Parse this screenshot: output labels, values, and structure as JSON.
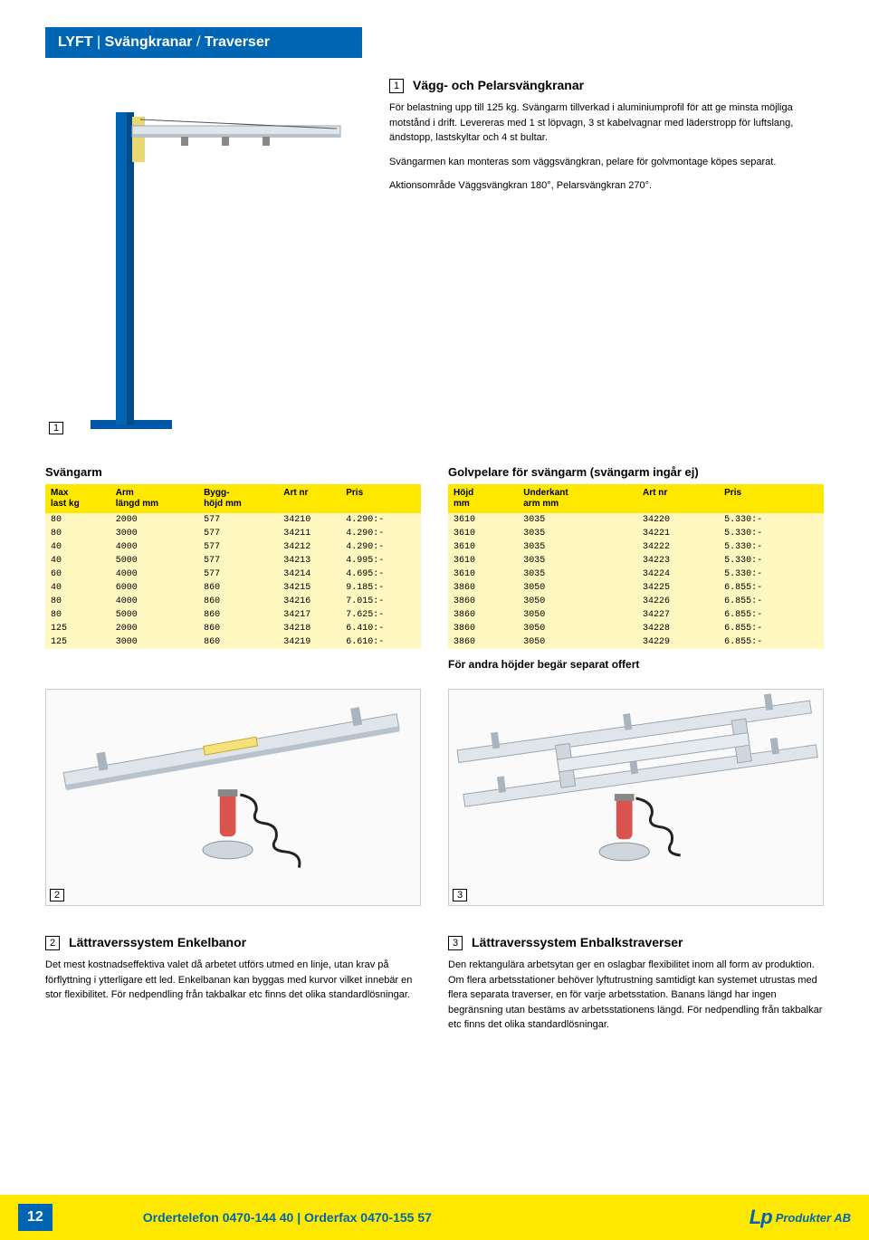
{
  "header": {
    "category": "LYFT",
    "sub1": "Svängkranar",
    "sub2": "Traverser"
  },
  "section1": {
    "num": "1",
    "title": "Vägg- och Pelarsvängkranar",
    "p1": "För belastning upp till 125 kg. Svängarm tillverkad i aluminiumprofil för att ge minsta möjliga motstånd i drift. Levereras med 1 st löpvagn, 3 st kabelvagnar med läderstropp för luftslang, ändstopp, lastskyltar och 4 st bultar.",
    "p2": "Svängarmen kan monteras som väggsvängkran, pelare för golvmontage köpes separat.",
    "p3": "Aktionsområde Väggsvängkran 180°, Pelarsvängkran 270°."
  },
  "imageMarkers": {
    "img1": "1",
    "img2": "2",
    "img3": "3"
  },
  "table1": {
    "caption": "Svängarm",
    "cols": [
      "Max\nlast kg",
      "Arm\nlängd mm",
      "Bygg-\nhöjd mm",
      "Art nr",
      "Pris"
    ],
    "rows": [
      [
        "80",
        "2000",
        "577",
        "34210",
        "4.290:-"
      ],
      [
        "80",
        "3000",
        "577",
        "34211",
        "4.290:-"
      ],
      [
        "40",
        "4000",
        "577",
        "34212",
        "4.290:-"
      ],
      [
        "40",
        "5000",
        "577",
        "34213",
        "4.995:-"
      ],
      [
        "60",
        "4000",
        "577",
        "34214",
        "4.695:-"
      ],
      [
        "40",
        "6000",
        "860",
        "34215",
        "9.185:-"
      ],
      [
        "80",
        "4000",
        "860",
        "34216",
        "7.015:-"
      ],
      [
        "80",
        "5000",
        "860",
        "34217",
        "7.625:-"
      ],
      [
        "125",
        "2000",
        "860",
        "34218",
        "6.410:-"
      ],
      [
        "125",
        "3000",
        "860",
        "34219",
        "6.610:-"
      ]
    ]
  },
  "table2": {
    "caption": "Golvpelare för svängarm (svängarm ingår ej)",
    "cols": [
      "Höjd\nmm",
      "Underkant\narm mm",
      "Art nr",
      "Pris"
    ],
    "rows": [
      [
        "3610",
        "3035",
        "34220",
        "5.330:-"
      ],
      [
        "3610",
        "3035",
        "34221",
        "5.330:-"
      ],
      [
        "3610",
        "3035",
        "34222",
        "5.330:-"
      ],
      [
        "3610",
        "3035",
        "34223",
        "5.330:-"
      ],
      [
        "3610",
        "3035",
        "34224",
        "5.330:-"
      ],
      [
        "3860",
        "3050",
        "34225",
        "6.855:-"
      ],
      [
        "3860",
        "3050",
        "34226",
        "6.855:-"
      ],
      [
        "3860",
        "3050",
        "34227",
        "6.855:-"
      ],
      [
        "3860",
        "3050",
        "34228",
        "6.855:-"
      ],
      [
        "3860",
        "3050",
        "34229",
        "6.855:-"
      ]
    ],
    "note": "För andra höjder begär separat offert"
  },
  "section2": {
    "num": "2",
    "title": "Lättraverssystem Enkelbanor",
    "body": "Det mest kostnadseffektiva valet då arbetet utförs utmed en linje, utan krav på förflyttning i ytterligare ett led. Enkelbanan kan byggas med kurvor vilket innebär en stor flexibilitet. För nedpendling från takbalkar etc finns det olika standardlösningar."
  },
  "section3": {
    "num": "3",
    "title": "Lättraverssystem Enbalkstraverser",
    "body": "Den rektangulära arbetsytan ger en oslagbar flexibilitet inom all form av produktion. Om flera arbetsstationer behöver lyftutrustning samtidigt kan systemet utrustas med flera separata traverser, en för varje arbetsstation. Banans längd har ingen begränsning utan bestäms av arbetsstationens längd. För nedpendling från takbalkar etc finns det olika standardlösningar."
  },
  "footer": {
    "page": "12",
    "tel_label": "Ordertelefon",
    "tel": "0470-144 40",
    "fax_label": "Orderfax",
    "fax": "0470-155 57",
    "company": "Produkter AB"
  },
  "colors": {
    "blue": "#0066b3",
    "yellow_header": "#ffe800",
    "yellow_row": "#fff7c0",
    "white": "#ffffff"
  }
}
